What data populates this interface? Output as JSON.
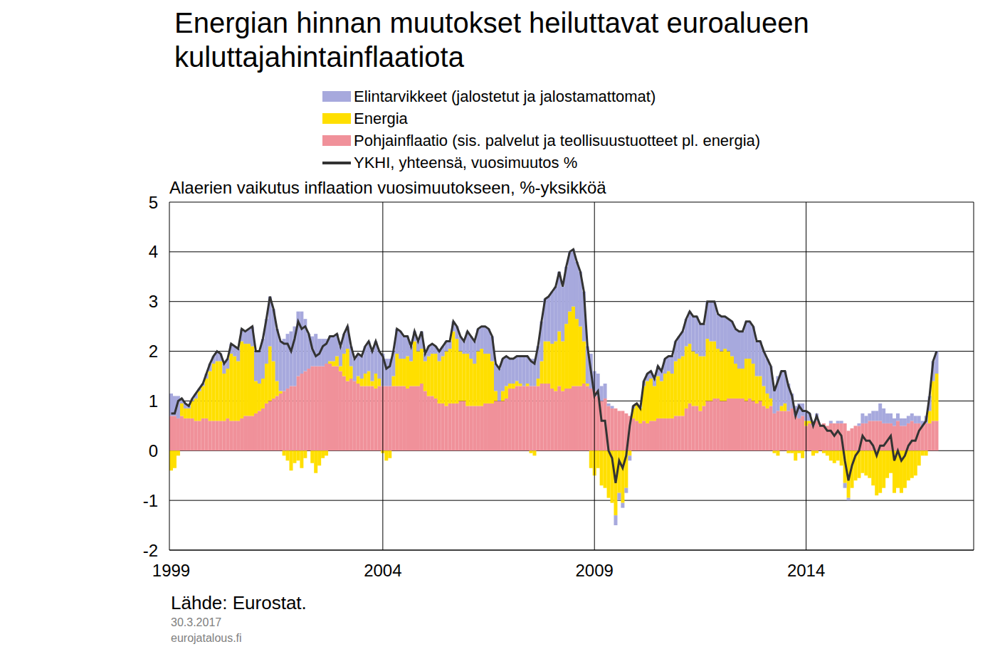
{
  "chart_data": {
    "type": "bar",
    "title": "Energian hinnan muutokset heiluttavat euroalueen kuluttajahintainflaatiota",
    "subtitle": "Alaerien vaikutus inflaation vuosimuutokseen, %-yksikköä",
    "annotations": [
      "Lähde: Eurostat.",
      "30.3.2017",
      "eurojatalous.fi"
    ],
    "stacked": true,
    "grid": true,
    "legend": "top",
    "ylim": [
      -2,
      5
    ],
    "yticks": [
      -2,
      -1,
      0,
      1,
      2,
      3,
      4,
      5
    ],
    "categories": [
      "1999",
      null,
      null,
      null,
      null,
      null,
      null,
      null,
      null,
      null,
      null,
      null,
      null,
      null,
      null,
      null,
      null,
      null,
      null,
      null,
      null,
      null,
      null,
      null,
      null,
      null,
      null,
      null,
      null,
      null,
      null,
      null,
      null,
      null,
      null,
      null,
      null,
      null,
      null,
      null,
      null,
      null,
      null,
      null,
      null,
      null,
      null,
      null,
      null,
      null,
      null,
      null,
      null,
      null,
      null,
      null,
      null,
      null,
      null,
      null,
      "2004",
      null,
      null,
      null,
      null,
      null,
      null,
      null,
      null,
      null,
      null,
      null,
      null,
      null,
      null,
      null,
      null,
      null,
      null,
      null,
      null,
      null,
      null,
      null,
      null,
      null,
      null,
      null,
      null,
      null,
      null,
      null,
      null,
      null,
      null,
      null,
      null,
      null,
      null,
      null,
      null,
      null,
      null,
      null,
      null,
      null,
      null,
      null,
      null,
      null,
      null,
      null,
      null,
      null,
      null,
      null,
      null,
      null,
      null,
      null,
      "2009",
      null,
      null,
      null,
      null,
      null,
      null,
      null,
      null,
      null,
      null,
      null,
      null,
      null,
      null,
      null,
      null,
      null,
      null,
      null,
      null,
      null,
      null,
      null,
      null,
      null,
      null,
      null,
      null,
      null,
      null,
      null,
      null,
      null,
      null,
      null,
      null,
      null,
      null,
      null,
      null,
      null,
      null,
      null,
      null,
      null,
      null,
      null,
      null,
      null,
      null,
      null,
      null,
      null,
      null,
      null,
      null,
      null,
      null,
      null,
      "2014",
      null,
      null,
      null,
      null,
      null,
      null,
      null,
      null,
      null,
      null,
      null,
      null,
      null,
      null,
      null,
      null,
      null,
      null,
      null,
      null,
      null,
      null,
      null,
      null,
      null,
      null,
      null,
      null,
      null,
      null,
      null,
      null,
      null,
      null,
      null,
      null,
      null,
      null,
      null,
      null,
      null,
      null,
      null,
      null,
      null,
      null,
      null
    ],
    "series": [
      {
        "name": "Elintarvikkeet (jalostetut ja jalostamattomat)",
        "type": "bar",
        "color": "#a7a9dd",
        "values": [
          0.45,
          0.4,
          0.45,
          0.1,
          0.1,
          0.05,
          0.05,
          0.1,
          0.05,
          0.05,
          0.1,
          0.15,
          0.15,
          0.2,
          0.15,
          0.2,
          0.2,
          0.2,
          0.2,
          0.25,
          0.25,
          0.25,
          0.3,
          0.4,
          0.6,
          0.65,
          0.8,
          0.9,
          1.0,
          1.05,
          1.05,
          1.0,
          1.05,
          1.1,
          1.1,
          1.2,
          1.3,
          1.25,
          1.05,
          0.7,
          0.6,
          0.65,
          0.55,
          0.55,
          0.5,
          0.5,
          0.5,
          0.45,
          0.4,
          0.4,
          0.45,
          0.4,
          0.45,
          0.45,
          0.45,
          0.55,
          0.6,
          0.6,
          0.65,
          0.55,
          0.65,
          0.55,
          0.55,
          0.5,
          0.5,
          0.55,
          0.45,
          0.4,
          0.3,
          0.2,
          0.2,
          0.35,
          0.15,
          0.2,
          0.2,
          0.15,
          0.2,
          0.2,
          0.2,
          0.15,
          0.2,
          0.25,
          0.3,
          0.25,
          0.45,
          0.45,
          0.45,
          0.45,
          0.45,
          0.55,
          0.5,
          0.5,
          0.55,
          0.65,
          0.65,
          0.6,
          0.5,
          0.5,
          0.5,
          0.55,
          0.6,
          0.55,
          0.55,
          0.55,
          0.65,
          0.8,
          0.85,
          0.9,
          1.05,
          1.1,
          1.2,
          1.1,
          1.15,
          1.2,
          1.15,
          1.15,
          1.1,
          1.0,
          0.75,
          0.7,
          0.4,
          0.45,
          0.3,
          0.3,
          0.05,
          0.05,
          -0.2,
          -0.15,
          -0.1,
          -0.1,
          -0.1,
          0.05,
          0.0,
          0.0,
          0.1,
          0.15,
          0.15,
          0.15,
          0.2,
          0.2,
          0.3,
          0.3,
          0.35,
          0.4,
          0.45,
          0.5,
          0.55,
          0.65,
          0.7,
          0.75,
          0.65,
          0.65,
          0.75,
          0.8,
          0.8,
          0.7,
          0.7,
          0.65,
          0.65,
          0.7,
          0.7,
          0.75,
          0.75,
          0.75,
          0.75,
          0.75,
          0.7,
          0.7,
          0.7,
          0.7,
          0.65,
          0.5,
          0.7,
          0.7,
          0.65,
          0.55,
          0.3,
          0.2,
          0.3,
          0.25,
          0.2,
          0.15,
          0.1,
          0.15,
          0.0,
          0.0,
          0.0,
          0.05,
          0.0,
          0.05,
          0.05,
          -0.1,
          -0.05,
          0.0,
          0.0,
          0.05,
          0.2,
          0.15,
          0.15,
          0.2,
          0.2,
          0.35,
          0.3,
          0.2,
          0.2,
          0.15,
          0.15,
          0.15,
          0.15,
          0.15,
          0.15,
          0.15,
          0.15,
          0.1,
          0.15,
          0.3,
          0.4,
          0.45,
          null,
          null,
          null,
          null,
          null,
          null,
          null,
          null,
          null,
          null
        ]
      },
      {
        "name": "Energia",
        "type": "bar",
        "color": "#ffdf00",
        "values": [
          -0.4,
          -0.35,
          -0.1,
          0.25,
          0.2,
          0.2,
          0.35,
          0.45,
          0.6,
          0.65,
          0.8,
          1.0,
          1.15,
          1.2,
          1.2,
          0.95,
          1.0,
          1.35,
          1.3,
          1.2,
          1.55,
          1.45,
          1.45,
          1.4,
          0.65,
          0.55,
          0.6,
          0.8,
          1.1,
          0.75,
          0.3,
          0.05,
          -0.1,
          -0.2,
          -0.4,
          -0.25,
          -0.2,
          -0.35,
          -0.15,
          0.0,
          -0.25,
          -0.45,
          -0.3,
          -0.15,
          -0.1,
          0.05,
          0.1,
          0.2,
          0.1,
          0.45,
          0.65,
          0.25,
          0.0,
          0.15,
          0.15,
          0.25,
          0.3,
          0.1,
          0.3,
          0.15,
          -0.05,
          -0.2,
          -0.15,
          0.2,
          0.65,
          0.55,
          0.55,
          0.65,
          0.5,
          0.9,
          0.7,
          0.7,
          0.6,
          0.8,
          0.85,
          0.9,
          0.85,
          0.95,
          1.1,
          1.1,
          1.45,
          1.3,
          1.0,
          0.95,
          1.05,
          0.95,
          0.85,
          1.1,
          1.15,
          1.0,
          1.0,
          0.85,
          0.2,
          0.0,
          0.2,
          0.25,
          0.1,
          0.1,
          0.1,
          0.05,
          0.0,
          0.05,
          -0.05,
          -0.1,
          0.15,
          0.45,
          0.85,
          0.85,
          0.9,
          1.0,
          1.1,
          1.0,
          1.3,
          1.55,
          1.6,
          1.35,
          1.2,
          0.85,
          0.05,
          -0.35,
          -0.5,
          -0.35,
          -0.7,
          -0.75,
          -0.95,
          -1.05,
          -1.3,
          -0.85,
          -1.05,
          -0.75,
          -0.1,
          0.2,
          0.35,
          0.3,
          0.7,
          0.85,
          0.85,
          0.7,
          0.85,
          0.75,
          0.9,
          0.95,
          0.9,
          1.1,
          1.15,
          1.2,
          1.25,
          1.2,
          1.1,
          1.05,
          1.1,
          1.0,
          1.25,
          1.2,
          1.15,
          1.0,
          1.0,
          1.05,
          0.95,
          0.85,
          0.7,
          0.6,
          0.6,
          0.85,
          0.8,
          0.75,
          0.55,
          0.5,
          0.4,
          0.3,
          0.15,
          -0.05,
          -0.1,
          0.1,
          0.15,
          -0.05,
          -0.05,
          -0.2,
          -0.05,
          -0.15,
          0.1,
          0.05,
          -0.1,
          -0.05,
          0.0,
          -0.05,
          -0.1,
          -0.2,
          -0.25,
          -0.2,
          -0.3,
          -0.65,
          -0.95,
          -0.75,
          -0.6,
          -0.55,
          -0.45,
          -0.5,
          -0.55,
          -0.7,
          -0.9,
          -0.85,
          -0.75,
          -0.55,
          -0.45,
          -0.85,
          -0.75,
          -0.85,
          -0.75,
          -0.6,
          -0.55,
          -0.5,
          -0.3,
          -0.1,
          -0.1,
          0.25,
          0.8,
          0.95,
          null,
          null,
          null,
          null,
          null,
          null,
          null,
          null,
          null,
          null
        ]
      },
      {
        "name": "Pohjainflaatio (sis. palvelut ja teollisuustuotteet pl. energia)",
        "type": "bar",
        "color": "#f0919a",
        "values": [
          0.7,
          0.7,
          0.65,
          0.7,
          0.65,
          0.65,
          0.65,
          0.6,
          0.6,
          0.65,
          0.65,
          0.6,
          0.6,
          0.6,
          0.6,
          0.6,
          0.65,
          0.6,
          0.6,
          0.6,
          0.65,
          0.7,
          0.7,
          0.7,
          0.75,
          0.8,
          0.85,
          0.95,
          1.0,
          1.05,
          1.1,
          1.15,
          1.2,
          1.25,
          1.3,
          1.3,
          1.5,
          1.55,
          1.6,
          1.65,
          1.7,
          1.7,
          1.7,
          1.7,
          1.75,
          1.75,
          1.7,
          1.7,
          1.6,
          1.5,
          1.4,
          1.45,
          1.4,
          1.35,
          1.3,
          1.3,
          1.3,
          1.3,
          1.25,
          1.3,
          1.3,
          1.3,
          1.3,
          1.3,
          1.3,
          1.3,
          1.3,
          1.25,
          1.3,
          1.3,
          1.3,
          1.35,
          1.2,
          1.1,
          1.1,
          1.05,
          0.95,
          0.95,
          0.9,
          0.95,
          0.95,
          0.95,
          1.0,
          1.0,
          0.9,
          0.9,
          0.9,
          0.9,
          0.9,
          0.95,
          0.95,
          0.95,
          1.0,
          1.0,
          1.0,
          1.05,
          1.25,
          1.25,
          1.3,
          1.3,
          1.3,
          1.3,
          1.3,
          1.3,
          1.3,
          1.35,
          1.35,
          1.35,
          1.25,
          1.2,
          1.3,
          1.2,
          1.25,
          1.25,
          1.3,
          1.3,
          1.3,
          1.35,
          1.3,
          1.25,
          1.2,
          1.1,
          1.0,
          1.05,
          0.9,
          0.85,
          0.85,
          0.8,
          0.8,
          0.75,
          0.7,
          0.65,
          0.6,
          0.55,
          0.6,
          0.55,
          0.6,
          0.6,
          0.65,
          0.65,
          0.65,
          0.65,
          0.65,
          0.7,
          0.7,
          0.7,
          0.85,
          0.95,
          0.9,
          0.9,
          0.8,
          0.9,
          1.0,
          1.0,
          1.05,
          1.05,
          1.0,
          1.0,
          1.05,
          1.05,
          1.05,
          1.05,
          1.05,
          1.0,
          1.05,
          1.0,
          0.95,
          1.0,
          0.9,
          0.85,
          0.9,
          0.75,
          0.8,
          0.8,
          0.8,
          0.8,
          0.85,
          0.7,
          0.65,
          0.7,
          0.5,
          0.55,
          0.5,
          0.6,
          0.5,
          0.55,
          0.5,
          0.55,
          0.55,
          0.55,
          0.55,
          0.55,
          0.4,
          0.45,
          0.5,
          0.5,
          0.55,
          0.55,
          0.6,
          0.6,
          0.6,
          0.6,
          0.55,
          0.55,
          0.55,
          0.5,
          0.6,
          0.5,
          0.5,
          0.55,
          0.6,
          0.55,
          0.55,
          0.5,
          0.55,
          0.55,
          0.6,
          0.6,
          null,
          null,
          null,
          null,
          null,
          null,
          null,
          null,
          null,
          null
        ]
      },
      {
        "name": "YKHI, yhteensä, vuosimuutos %",
        "type": "line",
        "color": "#333333",
        "values": [
          0.75,
          0.75,
          1.0,
          1.05,
          0.95,
          0.9,
          1.05,
          1.15,
          1.25,
          1.35,
          1.55,
          1.75,
          1.9,
          2.0,
          1.95,
          1.75,
          1.85,
          2.15,
          2.1,
          2.05,
          2.45,
          2.4,
          2.45,
          2.5,
          2.0,
          2.0,
          2.25,
          2.65,
          3.1,
          2.85,
          2.45,
          2.2,
          2.15,
          2.15,
          2.0,
          2.25,
          2.6,
          2.45,
          2.5,
          2.35,
          2.05,
          1.9,
          1.95,
          2.1,
          2.15,
          2.3,
          2.3,
          2.35,
          2.1,
          2.35,
          2.5,
          2.1,
          1.85,
          1.95,
          1.9,
          2.1,
          2.2,
          2.0,
          2.2,
          2.0,
          1.9,
          1.65,
          1.7,
          2.0,
          2.45,
          2.4,
          2.3,
          2.3,
          2.1,
          2.4,
          2.2,
          2.4,
          1.95,
          2.1,
          2.15,
          2.1,
          2.0,
          2.1,
          2.2,
          2.2,
          2.6,
          2.5,
          2.3,
          2.2,
          2.4,
          2.3,
          2.2,
          2.45,
          2.5,
          2.5,
          2.45,
          2.3,
          1.75,
          1.65,
          1.85,
          1.9,
          1.85,
          1.85,
          1.9,
          1.9,
          1.9,
          1.9,
          1.8,
          1.75,
          2.1,
          2.6,
          3.05,
          3.1,
          3.2,
          3.3,
          3.6,
          3.3,
          3.7,
          4.0,
          4.05,
          3.8,
          3.6,
          3.2,
          2.1,
          1.6,
          1.1,
          1.2,
          0.6,
          0.6,
          0.0,
          -0.15,
          -0.65,
          -0.2,
          -0.35,
          -0.1,
          0.5,
          0.9,
          0.95,
          0.85,
          1.4,
          1.55,
          1.6,
          1.45,
          1.7,
          1.6,
          1.85,
          1.9,
          1.9,
          2.2,
          2.3,
          2.4,
          2.65,
          2.8,
          2.7,
          2.7,
          2.55,
          2.55,
          3.0,
          3.0,
          3.0,
          2.75,
          2.7,
          2.7,
          2.65,
          2.6,
          2.45,
          2.4,
          2.4,
          2.6,
          2.6,
          2.5,
          2.2,
          2.2,
          2.0,
          1.85,
          1.7,
          1.2,
          1.4,
          1.6,
          1.6,
          1.3,
          1.1,
          0.7,
          0.9,
          0.8,
          0.8,
          0.75,
          0.5,
          0.7,
          0.5,
          0.5,
          0.4,
          0.4,
          0.3,
          0.4,
          0.3,
          -0.2,
          -0.6,
          -0.3,
          -0.1,
          0.0,
          0.3,
          0.2,
          0.2,
          0.1,
          -0.1,
          0.1,
          0.1,
          0.2,
          0.3,
          -0.2,
          0.0,
          -0.2,
          -0.1,
          0.1,
          0.2,
          0.2,
          0.4,
          0.5,
          0.6,
          1.1,
          1.8,
          2.0,
          null,
          null,
          null,
          null,
          null,
          null,
          null,
          null,
          null,
          null
        ]
      }
    ]
  }
}
